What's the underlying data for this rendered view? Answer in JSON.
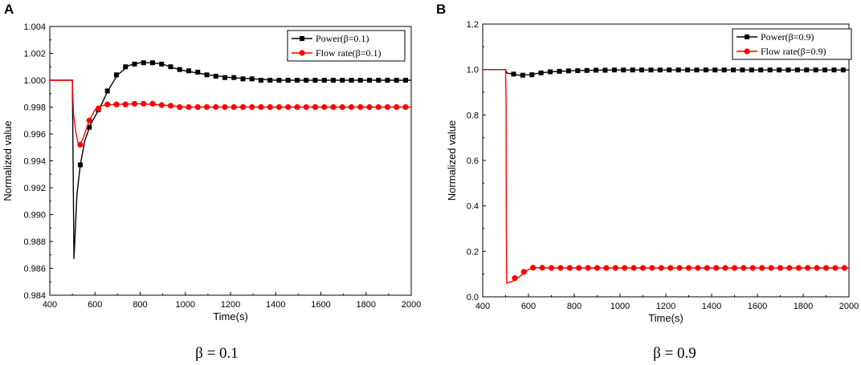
{
  "panels": [
    {
      "letter": "A",
      "caption": "β = 0.1",
      "chart_data": {
        "type": "line",
        "title": "",
        "xlabel": "Time(s)",
        "ylabel": "Normalized value",
        "xlim": [
          400,
          2000
        ],
        "ylim": [
          0.984,
          1.004
        ],
        "xticks": [
          400,
          600,
          800,
          1000,
          1200,
          1400,
          1600,
          1800,
          2000
        ],
        "yticks": [
          0.984,
          0.986,
          0.988,
          0.99,
          0.992,
          0.994,
          0.996,
          0.998,
          1.0,
          1.002,
          1.004
        ],
        "ytick_labels": [
          "0.984",
          "0.986",
          "0.988",
          "0.990",
          "0.992",
          "0.994",
          "0.996",
          "0.998",
          "1.000",
          "1.002",
          "1.004"
        ],
        "legend_position": "top-right",
        "series": [
          {
            "name": "Power(β=0.1)",
            "color": "#000000",
            "marker": "square",
            "line": [
              [
                400,
                1.0
              ],
              [
                500,
                1.0
              ],
              [
                502,
                0.996
              ],
              [
                507,
                0.9867
              ],
              [
                512,
                0.9885
              ],
              [
                520,
                0.9915
              ],
              [
                535,
                0.9937
              ],
              [
                555,
                0.9955
              ],
              [
                580,
                0.9967
              ],
              [
                620,
                0.9979
              ],
              [
                660,
                0.9993
              ],
              [
                700,
                1.0004
              ],
              [
                750,
                1.0011
              ],
              [
                800,
                1.0013
              ],
              [
                850,
                1.0013
              ],
              [
                900,
                1.0012
              ],
              [
                950,
                1.0009
              ],
              [
                1000,
                1.0007
              ],
              [
                1100,
                1.0004
              ],
              [
                1200,
                1.0002
              ],
              [
                1300,
                1.0001
              ],
              [
                1400,
                1.0
              ],
              [
                2000,
                1.0
              ]
            ],
            "markers": [
              [
                535,
                0.9937
              ],
              [
                575,
                0.9965
              ],
              [
                615,
                0.9978
              ],
              [
                655,
                0.9992
              ],
              [
                695,
                1.0004
              ],
              [
                735,
                1.001
              ],
              [
                775,
                1.0012
              ],
              [
                815,
                1.0013
              ],
              [
                855,
                1.0013
              ],
              [
                895,
                1.0012
              ],
              [
                935,
                1.001
              ],
              [
                975,
                1.0008
              ],
              [
                1015,
                1.0007
              ],
              [
                1055,
                1.0006
              ],
              [
                1095,
                1.0004
              ],
              [
                1135,
                1.0003
              ],
              [
                1175,
                1.0002
              ],
              [
                1215,
                1.0002
              ],
              [
                1255,
                1.0001
              ],
              [
                1295,
                1.0001
              ],
              [
                1335,
                1.0
              ],
              [
                1375,
                1.0
              ],
              [
                1415,
                1.0
              ],
              [
                1455,
                1.0
              ],
              [
                1495,
                1.0
              ],
              [
                1535,
                1.0
              ],
              [
                1575,
                1.0
              ],
              [
                1615,
                1.0
              ],
              [
                1655,
                1.0
              ],
              [
                1695,
                1.0
              ],
              [
                1735,
                1.0
              ],
              [
                1775,
                1.0
              ],
              [
                1815,
                1.0
              ],
              [
                1855,
                1.0
              ],
              [
                1895,
                1.0
              ],
              [
                1935,
                1.0
              ],
              [
                1975,
                1.0
              ]
            ]
          },
          {
            "name": "Flow rate(β=0.1)",
            "color": "#ff0000",
            "marker": "circle",
            "line": [
              [
                400,
                1.0
              ],
              [
                500,
                1.0
              ],
              [
                505,
                0.9975
              ],
              [
                515,
                0.9962
              ],
              [
                525,
                0.9953
              ],
              [
                535,
                0.9952
              ],
              [
                550,
                0.9958
              ],
              [
                575,
                0.997
              ],
              [
                600,
                0.9978
              ],
              [
                630,
                0.9981
              ],
              [
                680,
                0.9982
              ],
              [
                800,
                0.99825
              ],
              [
                900,
                0.99815
              ],
              [
                1000,
                0.998
              ],
              [
                2000,
                0.998
              ]
            ],
            "markers": [
              [
                535,
                0.9952
              ],
              [
                575,
                0.997
              ],
              [
                615,
                0.9979
              ],
              [
                655,
                0.9982
              ],
              [
                695,
                0.9982
              ],
              [
                735,
                0.9982
              ],
              [
                775,
                0.99825
              ],
              [
                815,
                0.99825
              ],
              [
                855,
                0.99825
              ],
              [
                895,
                0.99815
              ],
              [
                935,
                0.9981
              ],
              [
                975,
                0.998
              ],
              [
                1015,
                0.998
              ],
              [
                1055,
                0.998
              ],
              [
                1095,
                0.998
              ],
              [
                1135,
                0.998
              ],
              [
                1175,
                0.998
              ],
              [
                1215,
                0.998
              ],
              [
                1255,
                0.998
              ],
              [
                1295,
                0.998
              ],
              [
                1335,
                0.998
              ],
              [
                1375,
                0.998
              ],
              [
                1415,
                0.998
              ],
              [
                1455,
                0.998
              ],
              [
                1495,
                0.998
              ],
              [
                1535,
                0.998
              ],
              [
                1575,
                0.998
              ],
              [
                1615,
                0.998
              ],
              [
                1655,
                0.998
              ],
              [
                1695,
                0.998
              ],
              [
                1735,
                0.998
              ],
              [
                1775,
                0.998
              ],
              [
                1815,
                0.998
              ],
              [
                1855,
                0.998
              ],
              [
                1895,
                0.998
              ],
              [
                1935,
                0.998
              ],
              [
                1975,
                0.998
              ]
            ]
          }
        ]
      }
    },
    {
      "letter": "B",
      "caption": "β = 0.9",
      "chart_data": {
        "type": "line",
        "title": "",
        "xlabel": "Time(s)",
        "ylabel": "Normalized value",
        "xlim": [
          400,
          2000
        ],
        "ylim": [
          0.0,
          1.2
        ],
        "xticks": [
          400,
          600,
          800,
          1000,
          1200,
          1400,
          1600,
          1800,
          2000
        ],
        "yticks": [
          0.0,
          0.2,
          0.4,
          0.6,
          0.8,
          1.0,
          1.2
        ],
        "ytick_labels": [
          "0.0",
          "0.2",
          "0.4",
          "0.6",
          "0.8",
          "1.0",
          "1.2"
        ],
        "legend_position": "top-right",
        "series": [
          {
            "name": "Power(β=0.9)",
            "color": "#000000",
            "marker": "square",
            "line": [
              [
                400,
                1.0
              ],
              [
                500,
                1.0
              ],
              [
                505,
                0.985
              ],
              [
                530,
                0.98
              ],
              [
                560,
                0.975
              ],
              [
                600,
                0.977
              ],
              [
                650,
                0.985
              ],
              [
                700,
                0.99
              ],
              [
                800,
                0.995
              ],
              [
                900,
                0.997
              ],
              [
                1000,
                0.998
              ],
              [
                2000,
                0.998
              ]
            ],
            "markers": [
              [
                535,
                0.98
              ],
              [
                575,
                0.975
              ],
              [
                615,
                0.977
              ],
              [
                655,
                0.985
              ],
              [
                695,
                0.99
              ],
              [
                735,
                0.992
              ],
              [
                775,
                0.994
              ],
              [
                815,
                0.995
              ],
              [
                855,
                0.996
              ],
              [
                895,
                0.997
              ],
              [
                935,
                0.997
              ],
              [
                975,
                0.998
              ],
              [
                1015,
                0.998
              ],
              [
                1055,
                0.998
              ],
              [
                1095,
                0.998
              ],
              [
                1135,
                0.998
              ],
              [
                1175,
                0.998
              ],
              [
                1215,
                0.998
              ],
              [
                1255,
                0.998
              ],
              [
                1295,
                0.998
              ],
              [
                1335,
                0.998
              ],
              [
                1375,
                0.998
              ],
              [
                1415,
                0.998
              ],
              [
                1455,
                0.998
              ],
              [
                1495,
                0.998
              ],
              [
                1535,
                0.998
              ],
              [
                1575,
                0.998
              ],
              [
                1615,
                0.998
              ],
              [
                1655,
                0.998
              ],
              [
                1695,
                0.998
              ],
              [
                1735,
                0.998
              ],
              [
                1775,
                0.998
              ],
              [
                1815,
                0.998
              ],
              [
                1855,
                0.998
              ],
              [
                1895,
                0.998
              ],
              [
                1935,
                0.998
              ],
              [
                1975,
                0.998
              ]
            ]
          },
          {
            "name": "Flow rate(β=0.9)",
            "color": "#ff0000",
            "marker": "circle",
            "line": [
              [
                400,
                1.0
              ],
              [
                500,
                1.0
              ],
              [
                502,
                0.86
              ],
              [
                503,
                0.3
              ],
              [
                505,
                0.06
              ],
              [
                530,
                0.068
              ],
              [
                550,
                0.08
              ],
              [
                575,
                0.1
              ],
              [
                600,
                0.12
              ],
              [
                630,
                0.128
              ],
              [
                700,
                0.127
              ],
              [
                2000,
                0.127
              ]
            ],
            "markers": [
              [
                540,
                0.082
              ],
              [
                580,
                0.11
              ],
              [
                620,
                0.128
              ],
              [
                660,
                0.128
              ],
              [
                700,
                0.127
              ],
              [
                740,
                0.127
              ],
              [
                780,
                0.127
              ],
              [
                820,
                0.127
              ],
              [
                860,
                0.127
              ],
              [
                900,
                0.127
              ],
              [
                940,
                0.127
              ],
              [
                980,
                0.127
              ],
              [
                1020,
                0.127
              ],
              [
                1060,
                0.127
              ],
              [
                1100,
                0.127
              ],
              [
                1140,
                0.127
              ],
              [
                1180,
                0.127
              ],
              [
                1220,
                0.127
              ],
              [
                1260,
                0.127
              ],
              [
                1300,
                0.127
              ],
              [
                1340,
                0.127
              ],
              [
                1380,
                0.127
              ],
              [
                1420,
                0.127
              ],
              [
                1460,
                0.127
              ],
              [
                1500,
                0.127
              ],
              [
                1540,
                0.127
              ],
              [
                1580,
                0.127
              ],
              [
                1620,
                0.127
              ],
              [
                1660,
                0.127
              ],
              [
                1700,
                0.127
              ],
              [
                1740,
                0.127
              ],
              [
                1780,
                0.127
              ],
              [
                1820,
                0.127
              ],
              [
                1860,
                0.127
              ],
              [
                1900,
                0.127
              ],
              [
                1940,
                0.127
              ],
              [
                1980,
                0.127
              ]
            ]
          }
        ]
      }
    }
  ]
}
